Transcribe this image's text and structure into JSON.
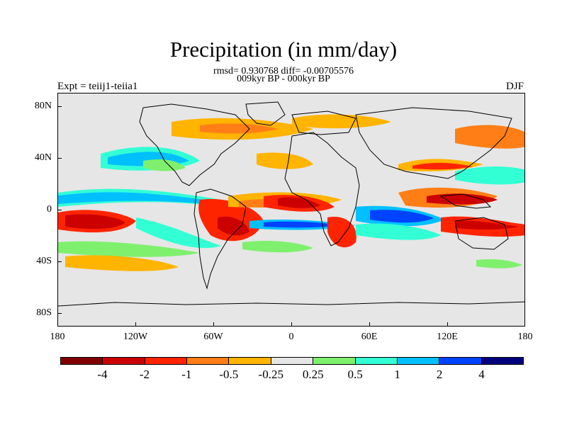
{
  "title": "Precipitation (in mm/day)",
  "stats_line": "rmsd= 0.930768 diff= -0.00705576",
  "subtitle": "009kyr BP - 000kyr BP",
  "left_label": "Expt = teiij1-teiia1",
  "right_label": "DJF",
  "axes": {
    "y_ticks": [
      "80N",
      "40N",
      "0",
      "40S",
      "80S"
    ],
    "x_ticks": [
      "180",
      "120W",
      "60W",
      "0",
      "60E",
      "120E",
      "180"
    ]
  },
  "colors": {
    "land_nodiff": "#e6e6e6",
    "coast": "#000000"
  },
  "colorbar": {
    "colors": [
      "#800000",
      "#cc0000",
      "#ff2400",
      "#ff7f16",
      "#ffb400",
      "#e6e6e6",
      "#7ff06e",
      "#33ffd5",
      "#00c0ff",
      "#0043ff",
      "#00007f"
    ],
    "labels": [
      "-4",
      "-2",
      "-1",
      "-0.5",
      "-0.25",
      "0.25",
      "0.5",
      "1",
      "2",
      "4"
    ]
  }
}
